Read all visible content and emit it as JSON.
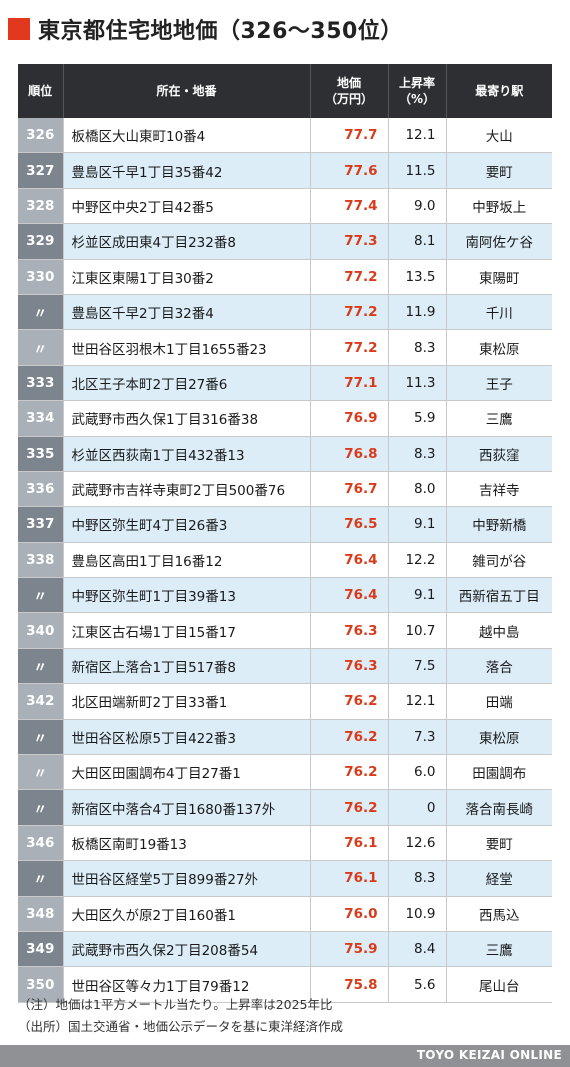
{
  "title": "東京都住宅地地価（326〜350位）",
  "colors": {
    "accent": "#e2381e",
    "price": "#d93a1a",
    "header_bg": "#2d2f33",
    "stripe": "#dcedf8"
  },
  "headers": {
    "rank": "順位",
    "address": "所在・地番",
    "price_line1": "地価",
    "price_line2": "（万円）",
    "rate_line1": "上昇率",
    "rate_line2": "（%）",
    "station": "最寄り駅"
  },
  "rows": [
    {
      "rank": "326",
      "address": "板橋区大山東町10番4",
      "price": "77.7",
      "rate": "12.1",
      "station": "大山"
    },
    {
      "rank": "327",
      "address": "豊島区千早1丁目35番42",
      "price": "77.6",
      "rate": "11.5",
      "station": "要町"
    },
    {
      "rank": "328",
      "address": "中野区中央2丁目42番5",
      "price": "77.4",
      "rate": "9.0",
      "station": "中野坂上"
    },
    {
      "rank": "329",
      "address": "杉並区成田東4丁目232番8",
      "price": "77.3",
      "rate": "8.1",
      "station": "南阿佐ケ谷"
    },
    {
      "rank": "330",
      "address": "江東区東陽1丁目30番2",
      "price": "77.2",
      "rate": "13.5",
      "station": "東陽町"
    },
    {
      "rank": "〃",
      "address": "豊島区千早2丁目32番4",
      "price": "77.2",
      "rate": "11.9",
      "station": "千川"
    },
    {
      "rank": "〃",
      "address": "世田谷区羽根木1丁目1655番23",
      "price": "77.2",
      "rate": "8.3",
      "station": "東松原"
    },
    {
      "rank": "333",
      "address": "北区王子本町2丁目27番6",
      "price": "77.1",
      "rate": "11.3",
      "station": "王子"
    },
    {
      "rank": "334",
      "address": "武蔵野市西久保1丁目316番38",
      "price": "76.9",
      "rate": "5.9",
      "station": "三鷹"
    },
    {
      "rank": "335",
      "address": "杉並区西荻南1丁目432番13",
      "price": "76.8",
      "rate": "8.3",
      "station": "西荻窪"
    },
    {
      "rank": "336",
      "address": "武蔵野市吉祥寺東町2丁目500番76",
      "price": "76.7",
      "rate": "8.0",
      "station": "吉祥寺"
    },
    {
      "rank": "337",
      "address": "中野区弥生町4丁目26番3",
      "price": "76.5",
      "rate": "9.1",
      "station": "中野新橋"
    },
    {
      "rank": "338",
      "address": "豊島区高田1丁目16番12",
      "price": "76.4",
      "rate": "12.2",
      "station": "雑司が谷"
    },
    {
      "rank": "〃",
      "address": "中野区弥生町1丁目39番13",
      "price": "76.4",
      "rate": "9.1",
      "station": "西新宿五丁目"
    },
    {
      "rank": "340",
      "address": "江東区古石場1丁目15番17",
      "price": "76.3",
      "rate": "10.7",
      "station": "越中島"
    },
    {
      "rank": "〃",
      "address": "新宿区上落合1丁目517番8",
      "price": "76.3",
      "rate": "7.5",
      "station": "落合"
    },
    {
      "rank": "342",
      "address": "北区田端新町2丁目33番1",
      "price": "76.2",
      "rate": "12.1",
      "station": "田端"
    },
    {
      "rank": "〃",
      "address": "世田谷区松原5丁目422番3",
      "price": "76.2",
      "rate": "7.3",
      "station": "東松原"
    },
    {
      "rank": "〃",
      "address": "大田区田園調布4丁目27番1",
      "price": "76.2",
      "rate": "6.0",
      "station": "田園調布"
    },
    {
      "rank": "〃",
      "address": "新宿区中落合4丁目1680番137外",
      "price": "76.2",
      "rate": "0",
      "station": "落合南長崎"
    },
    {
      "rank": "346",
      "address": "板橋区南町19番13",
      "price": "76.1",
      "rate": "12.6",
      "station": "要町"
    },
    {
      "rank": "〃",
      "address": "世田谷区経堂5丁目899番27外",
      "price": "76.1",
      "rate": "8.3",
      "station": "経堂"
    },
    {
      "rank": "348",
      "address": "大田区久が原2丁目160番1",
      "price": "76.0",
      "rate": "10.9",
      "station": "西馬込"
    },
    {
      "rank": "349",
      "address": "武蔵野市西久保2丁目208番54",
      "price": "75.9",
      "rate": "8.4",
      "station": "三鷹"
    },
    {
      "rank": "350",
      "address": "世田谷区等々力1丁目79番12",
      "price": "75.8",
      "rate": "5.6",
      "station": "尾山台"
    }
  ],
  "notes": {
    "note1": "（注）地価は1平方メートル当たり。上昇率は2025年比",
    "note2": "（出所）国土交通省・地価公示データを基に東洋経済作成"
  },
  "footer": {
    "brand": "TOYO KEIZAI ONLINE"
  }
}
